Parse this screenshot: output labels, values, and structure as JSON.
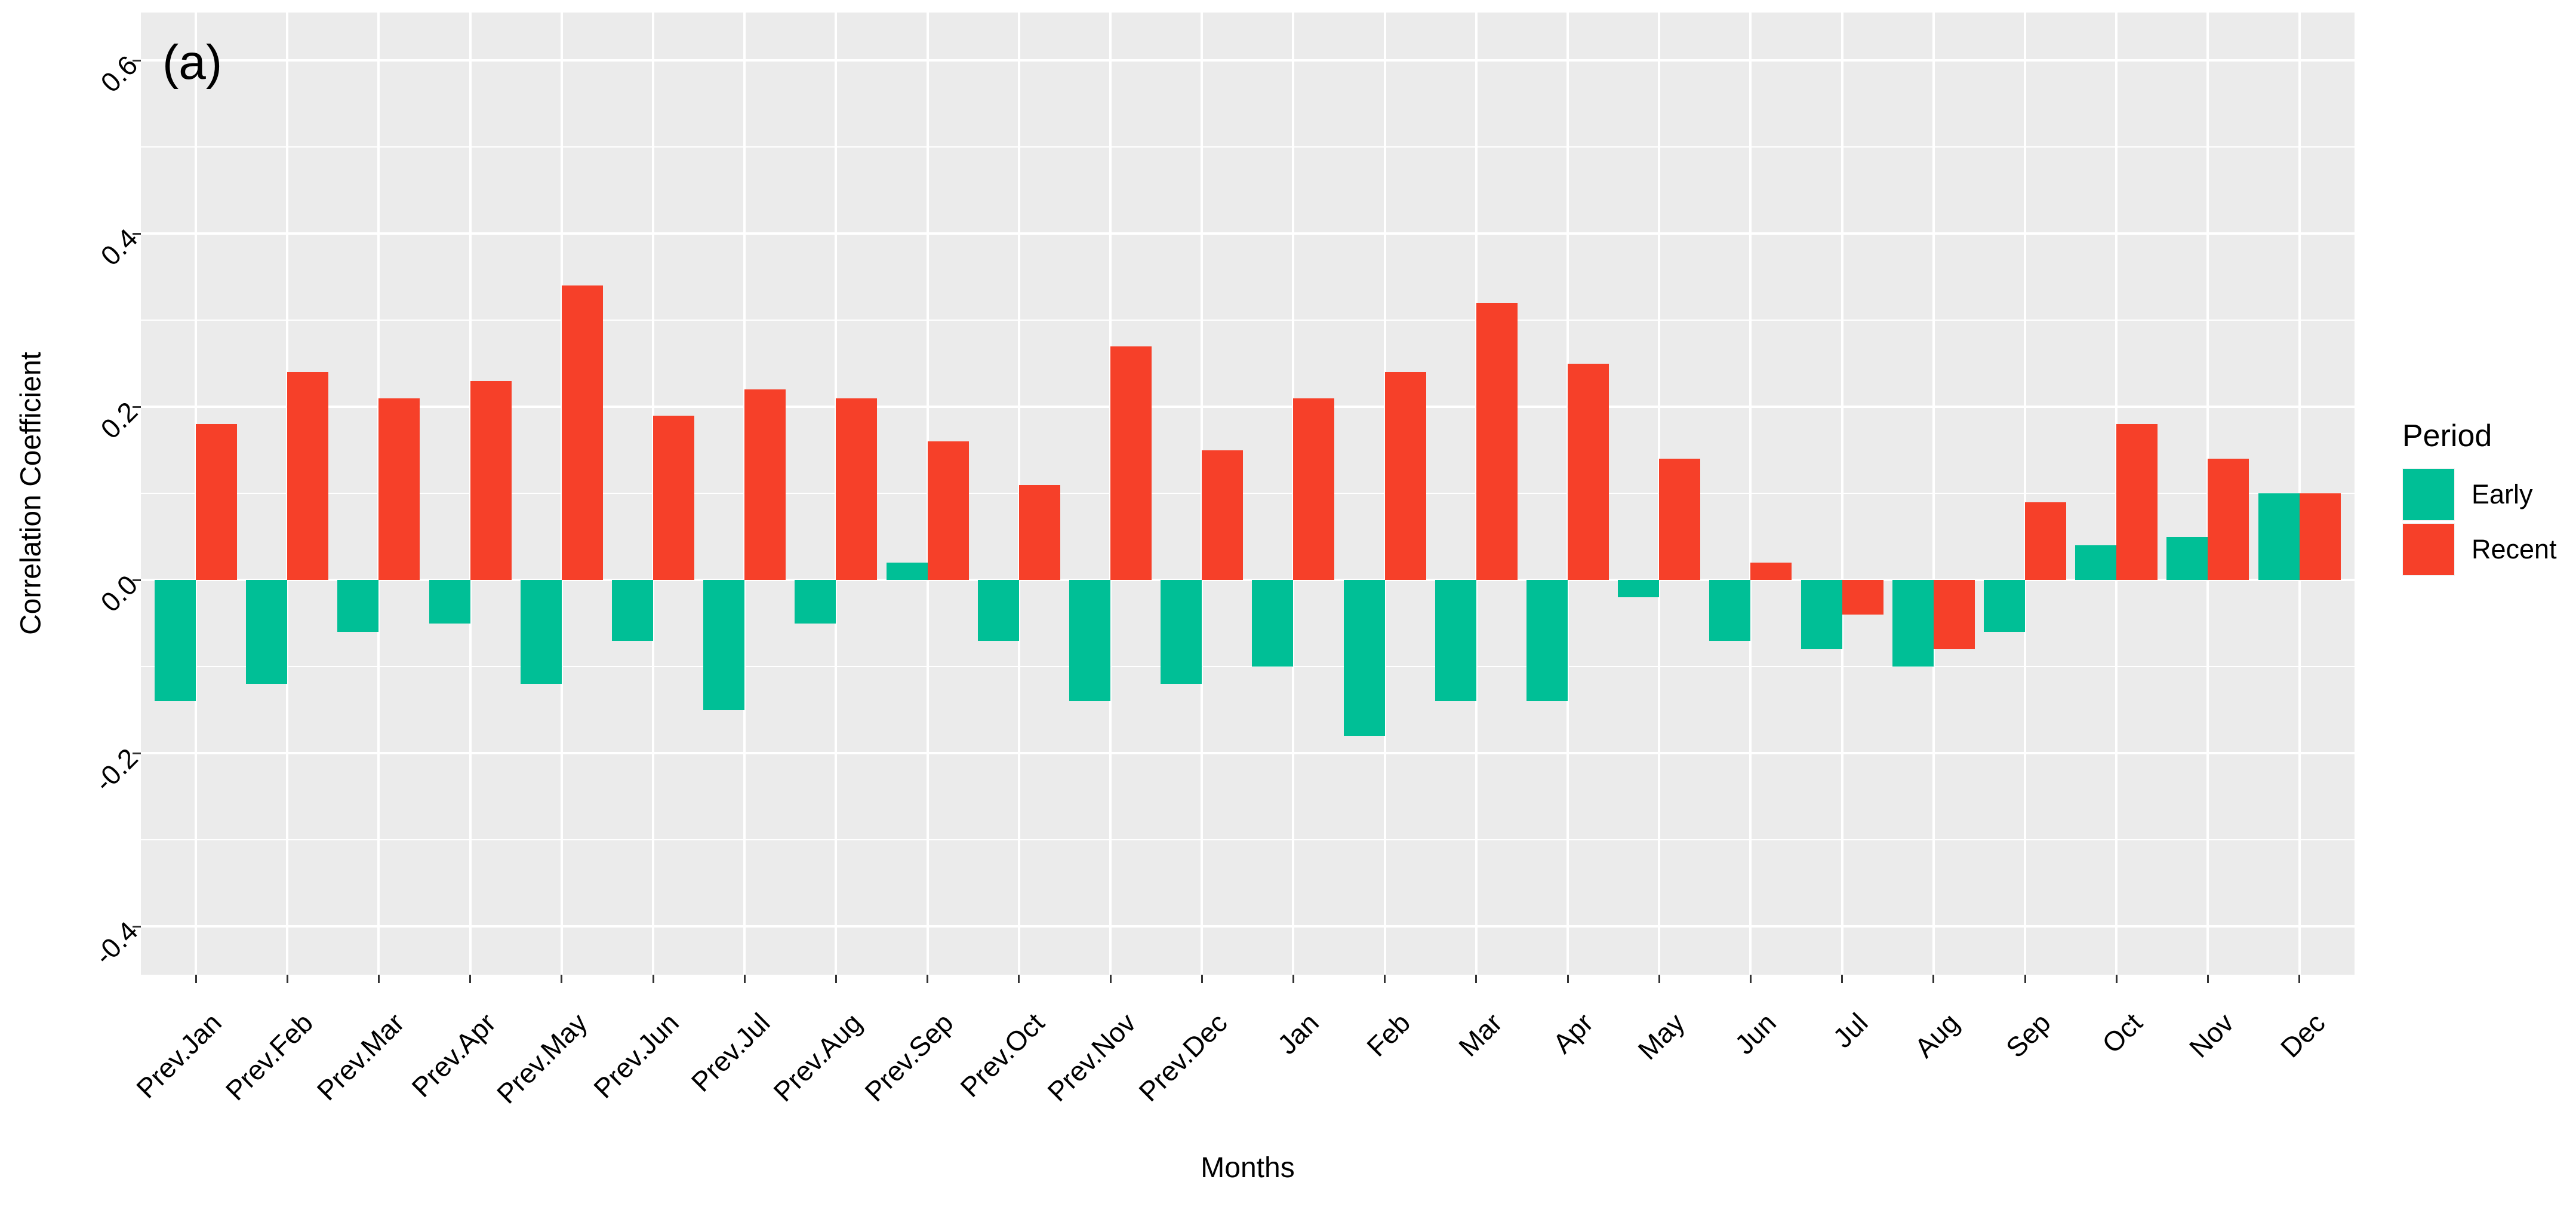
{
  "chart_data": {
    "type": "bar",
    "layout": "grouped-dodge",
    "title": "(a)",
    "xlabel": "Months",
    "ylabel": "Correlation Coefficient",
    "categories": [
      "Prev.Jan",
      "Prev.Feb",
      "Prev.Mar",
      "Prev.Apr",
      "Prev.May",
      "Prev.Jun",
      "Prev.Jul",
      "Prev.Aug",
      "Prev.Sep",
      "Prev.Oct",
      "Prev.Nov",
      "Prev.Dec",
      "Jan",
      "Feb",
      "Mar",
      "Apr",
      "May",
      "Jun",
      "Jul",
      "Aug",
      "Sep",
      "Oct",
      "Nov",
      "Dec"
    ],
    "series": [
      {
        "name": "Early",
        "color": "#00BF96",
        "values": [
          -0.14,
          -0.12,
          -0.06,
          -0.05,
          -0.12,
          -0.07,
          -0.15,
          -0.05,
          0.02,
          -0.07,
          -0.14,
          -0.12,
          -0.1,
          -0.18,
          -0.14,
          -0.14,
          -0.02,
          -0.07,
          -0.08,
          -0.1,
          -0.06,
          0.04,
          0.05,
          0.1
        ]
      },
      {
        "name": "Recent",
        "color": "#F64029",
        "values": [
          0.18,
          0.24,
          0.21,
          0.23,
          0.34,
          0.19,
          0.22,
          0.21,
          0.16,
          0.11,
          0.27,
          0.15,
          0.21,
          0.24,
          0.32,
          0.25,
          0.14,
          0.02,
          -0.04,
          -0.08,
          0.09,
          0.18,
          0.14,
          0.1
        ]
      }
    ],
    "ylim": [
      -0.456,
      0.655
    ],
    "y_axis": {
      "major_breaks": [
        0.6,
        0.4,
        0.2,
        0,
        -0.2,
        -0.4
      ],
      "major_labels": [
        "0.6",
        "0.4",
        "0.2",
        "0.0",
        "-0.2",
        "-0.4"
      ],
      "minor_breaks": [
        0.5,
        0.3,
        0.1,
        -0.1,
        -0.3
      ]
    },
    "legend": {
      "title": "Period",
      "position": "right"
    },
    "grid": true,
    "colors": {
      "panel_background": "#EBEBEB",
      "grid": "#FFFFFF",
      "tick": "#333333",
      "text": "#000000",
      "figure_background": "#FFFFFF"
    }
  }
}
